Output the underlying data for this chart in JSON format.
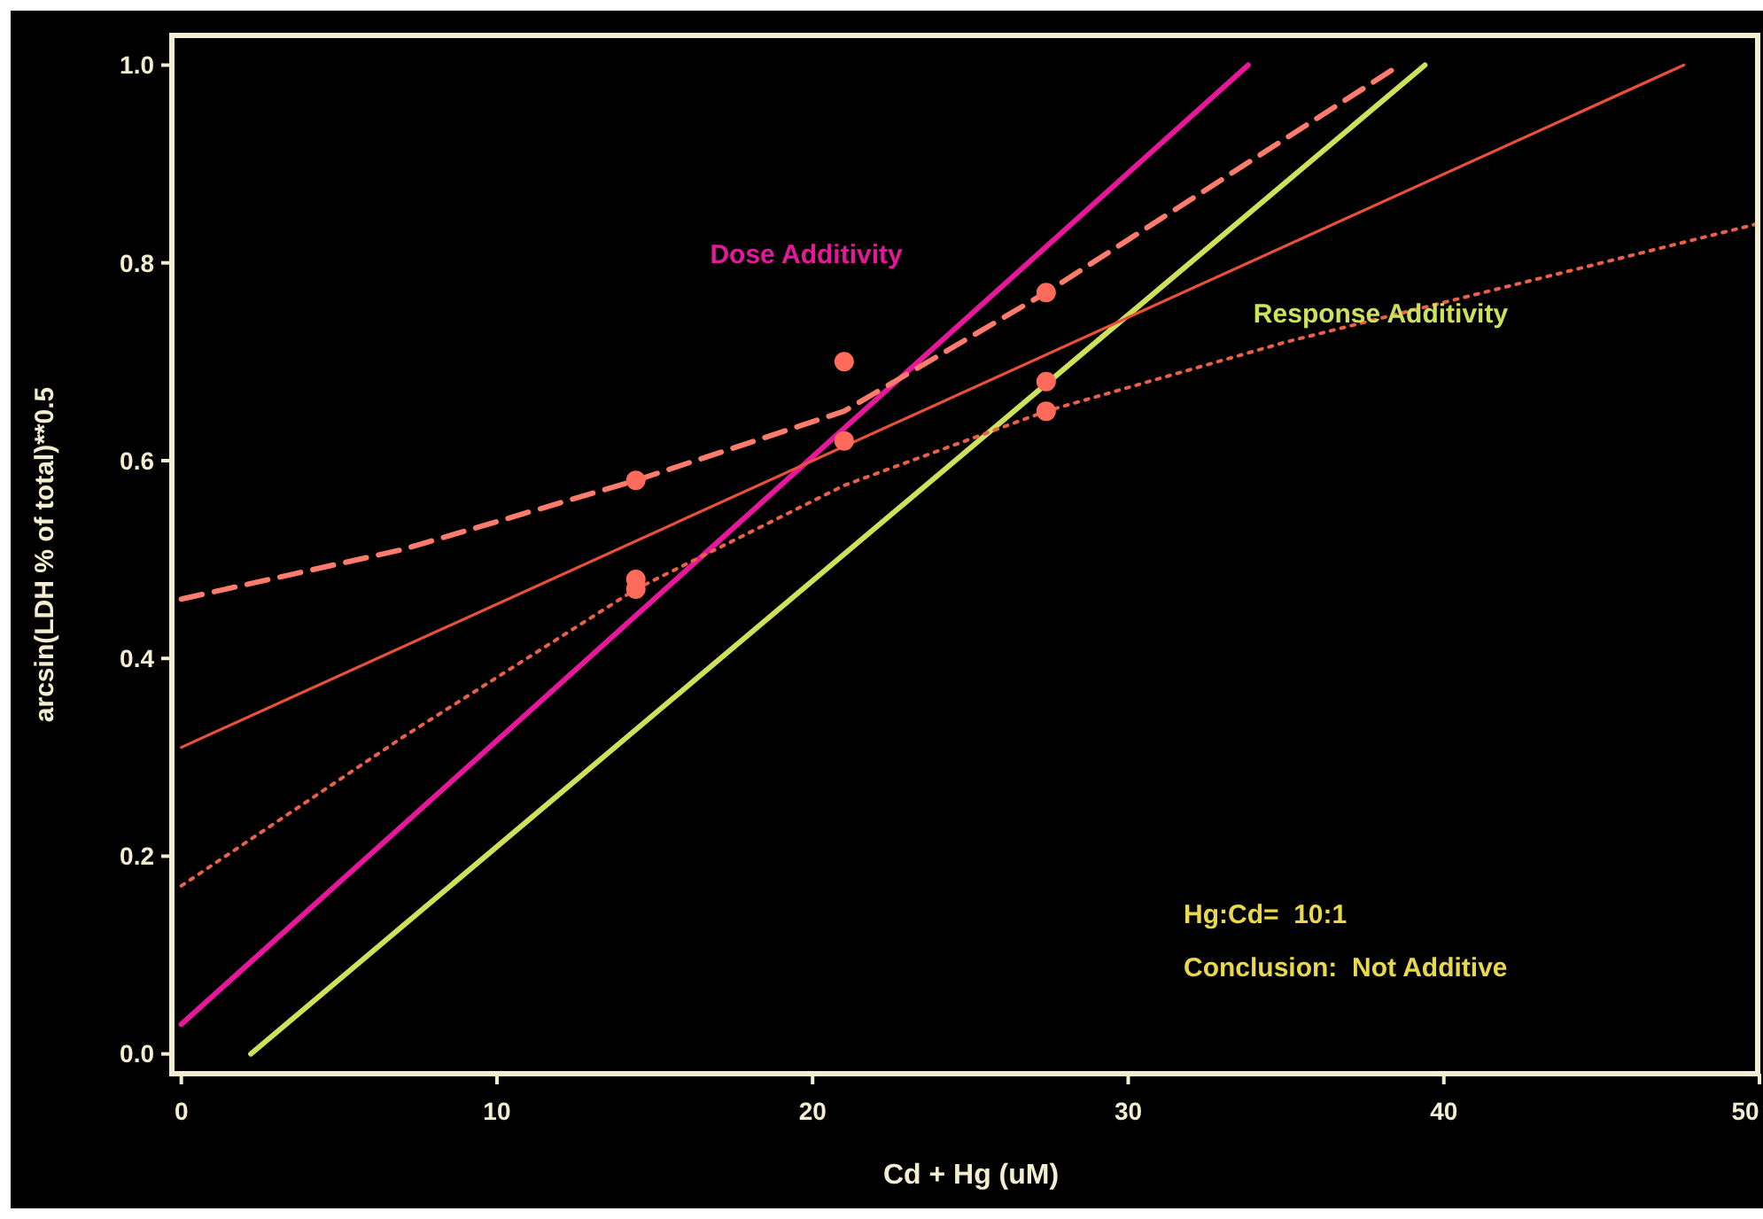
{
  "chart_data": {
    "type": "line",
    "xlabel": "Cd + Hg (uM)",
    "ylabel": "arcsin(LDH % of total)**0.5",
    "xlim": [
      -0.3,
      50
    ],
    "ylim": [
      -0.02,
      1.03
    ],
    "xticks": [
      0,
      10,
      20,
      30,
      40,
      50
    ],
    "yticks": [
      {
        "value": 0,
        "label": "0.0"
      },
      {
        "value": 0.2,
        "label": "0.2"
      },
      {
        "value": 0.4,
        "label": "0.4"
      },
      {
        "value": 0.6,
        "label": "0.6"
      },
      {
        "value": 0.8,
        "label": "0.8"
      },
      {
        "value": 1,
        "label": "1.0"
      }
    ],
    "grid": false,
    "series": [
      {
        "name": "Dose Additivity",
        "color": "#e6179a",
        "line_style": "solid",
        "marker": "none",
        "x": [
          0,
          33.8
        ],
        "values": [
          0.03,
          1.0
        ]
      },
      {
        "name": "Response Additivity",
        "color": "#cfe05a",
        "line_style": "solid",
        "marker": "none",
        "x": [
          2.2,
          39.4
        ],
        "values": [
          0.0,
          1.0
        ]
      },
      {
        "color": "#e8503a",
        "line_style": "solid",
        "marker": "none",
        "x": [
          0,
          47.6
        ],
        "values": [
          0.31,
          1.0
        ]
      },
      {
        "color": "#ff7b6b",
        "line_style": "dashed",
        "marker": "none",
        "x": [
          0,
          7,
          14.4,
          21,
          27.4,
          38.6
        ],
        "values": [
          0.46,
          0.51,
          0.58,
          0.65,
          0.77,
          1.0
        ]
      },
      {
        "color": "#e8604a",
        "line_style": "dotted",
        "marker": "none",
        "x": [
          0,
          7,
          14.4,
          21,
          27.4,
          35,
          40,
          50
        ],
        "values": [
          0.17,
          0.32,
          0.47,
          0.575,
          0.65,
          0.72,
          0.76,
          0.84
        ]
      },
      {
        "type": "scatter",
        "color": "#ff6b5a",
        "marker": "circle",
        "x": [
          14.4,
          14.4,
          14.4,
          21,
          21,
          27.4,
          27.4,
          27.4
        ],
        "values": [
          0.58,
          0.48,
          0.47,
          0.7,
          0.62,
          0.77,
          0.68,
          0.65
        ]
      }
    ],
    "annotations": [
      "Hg:Cd=  10:1",
      "Conclusion:  Not Additive"
    ]
  }
}
